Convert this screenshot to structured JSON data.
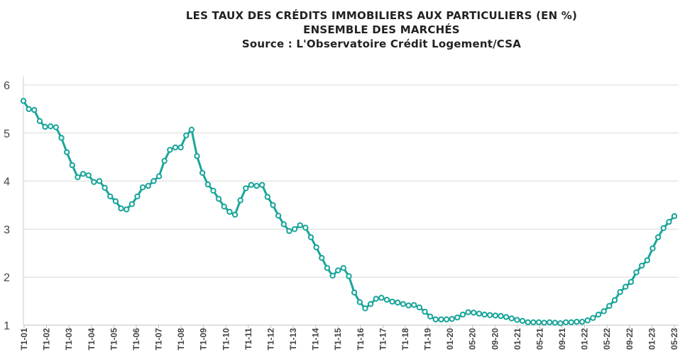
{
  "chart_data": {
    "type": "line",
    "title": "LES TAUX DES CRÉDITS IMMOBILIERS AUX PARTICULIERS (EN %)",
    "subtitle": "ENSEMBLE DES MARCHÉS",
    "source": "Source : L'Observatoire Crédit Logement/CSA",
    "xlabel": "",
    "ylabel": "",
    "ylim": [
      1,
      6
    ],
    "yticks": [
      "1",
      "2",
      "3",
      "4",
      "5",
      "6"
    ],
    "grid": true,
    "line_color": "#1aa59a",
    "marker_fill": "#ffffff",
    "x_tick_labels": [
      "T1-01",
      "T1-02",
      "T1-03",
      "T1-04",
      "T1-05",
      "T1-06",
      "T1-07",
      "T1-08",
      "T1-09",
      "T1-10",
      "T1-11",
      "T1-12",
      "T1-13",
      "T1-14",
      "T1-15",
      "T1-16",
      "T1-17",
      "T1-18",
      "T1-19",
      "01-20",
      "05-20",
      "09-20",
      "01-21",
      "05-21",
      "09-21",
      "01-22",
      "05-22",
      "09-22",
      "01-23",
      "05-23"
    ],
    "series": [
      {
        "values": [
          5.67,
          5.5,
          5.48,
          5.25,
          5.13,
          5.14,
          5.12,
          4.9,
          4.6,
          4.33,
          4.08,
          4.15,
          4.12,
          3.98,
          4.0,
          3.86,
          3.68,
          3.58,
          3.43,
          3.41,
          3.52,
          3.68,
          3.87,
          3.9,
          4.0,
          4.1,
          4.42,
          4.65,
          4.7,
          4.7,
          4.95,
          5.07,
          4.52,
          4.17,
          3.93,
          3.8,
          3.63,
          3.47,
          3.36,
          3.3,
          3.6,
          3.85,
          3.92,
          3.9,
          3.92,
          3.67,
          3.5,
          3.28,
          3.1,
          2.96,
          3.0,
          3.08,
          3.03,
          2.83,
          2.62,
          2.4,
          2.19,
          2.03,
          2.14,
          2.19,
          2.02,
          1.68,
          1.48,
          1.35,
          1.44,
          1.55,
          1.57,
          1.53,
          1.49,
          1.47,
          1.44,
          1.41,
          1.42,
          1.37,
          1.28,
          1.18,
          1.12,
          1.12,
          1.12,
          1.13,
          1.16,
          1.22,
          1.27,
          1.26,
          1.24,
          1.22,
          1.21,
          1.2,
          1.19,
          1.17,
          1.14,
          1.11,
          1.09,
          1.06,
          1.06,
          1.06,
          1.05,
          1.06,
          1.05,
          1.04,
          1.06,
          1.06,
          1.07,
          1.07,
          1.1,
          1.15,
          1.22,
          1.29,
          1.4,
          1.52,
          1.69,
          1.8,
          1.9,
          2.1,
          2.24,
          2.35,
          2.6,
          2.83,
          3.02,
          3.15,
          3.27
        ]
      }
    ]
  }
}
